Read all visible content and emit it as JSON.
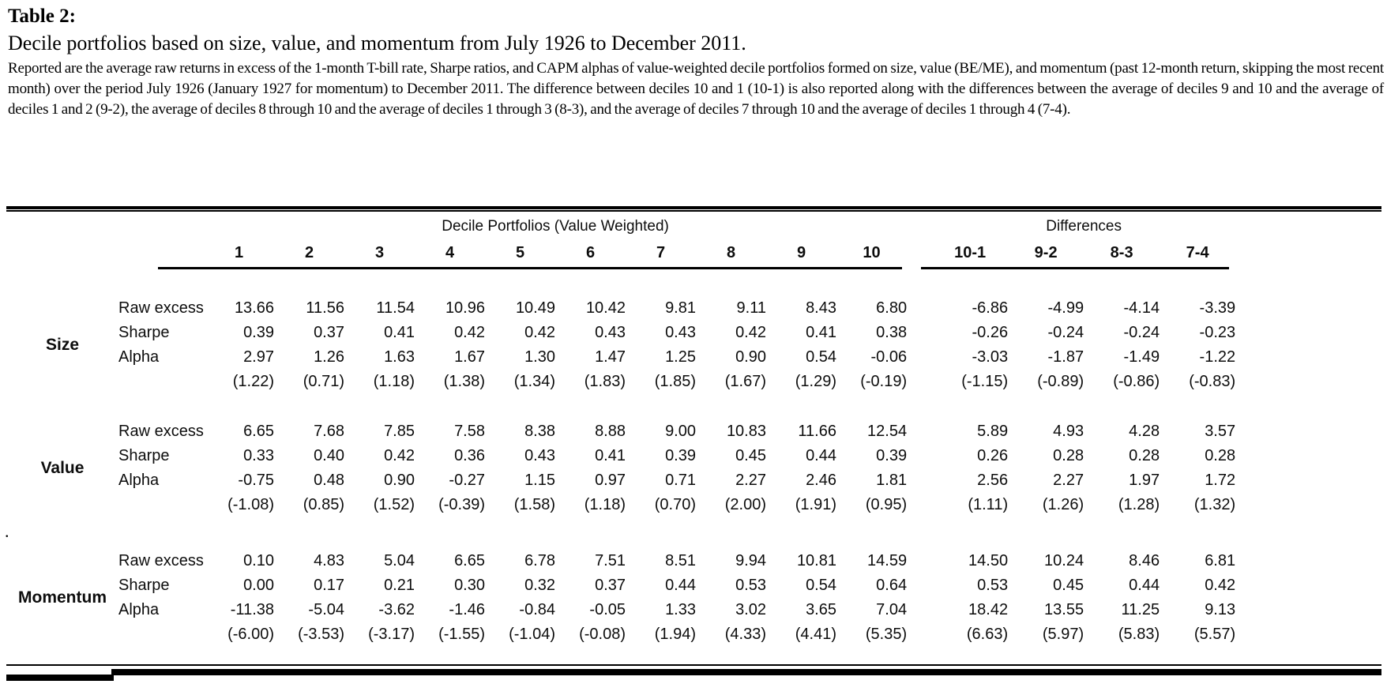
{
  "page": {
    "title": "Table 2:",
    "subtitle": "Decile portfolios based on size, value, and momentum from July 1926 to December 2011.",
    "description": "Reported are the average raw returns in excess of the 1-month T-bill rate, Sharpe ratios, and CAPM alphas of value-weighted decile portfolios formed on size, value (BE/ME), and momentum (past 12-month return, skipping the most recent month) over the period July 1926 (January 1927 for momentum) to December 2011. The difference between deciles 10 and 1 (10-1) is also reported along with the differences between the average of deciles 9 and 10 and the average of deciles 1 and 2 (9-2), the average of deciles 8 through 10 and the average of deciles 1 through 3 (8-3), and the average of deciles 7 through 10 and the average of deciles 1 through 4 (7-4).",
    "stray_mark": "."
  },
  "chart_data": {
    "type": "table",
    "title": "Decile portfolios based on size, value, and momentum from July 1926 to December 2011",
    "group_headers": {
      "deciles": "Decile Portfolios (Value Weighted)",
      "differences": "Differences"
    },
    "decile_columns": [
      "1",
      "2",
      "3",
      "4",
      "5",
      "6",
      "7",
      "8",
      "9",
      "10"
    ],
    "difference_columns": [
      "10-1",
      "9-2",
      "8-3",
      "7-4"
    ],
    "row_groups": [
      {
        "label": "Size",
        "rows": [
          {
            "stat": "Raw excess",
            "tstat": false,
            "deciles": [
              "13.66",
              "11.56",
              "11.54",
              "10.96",
              "10.49",
              "10.42",
              "9.81",
              "9.11",
              "8.43",
              "6.80"
            ],
            "differences": [
              "-6.86",
              "-4.99",
              "-4.14",
              "-3.39"
            ]
          },
          {
            "stat": "Sharpe",
            "tstat": false,
            "deciles": [
              "0.39",
              "0.37",
              "0.41",
              "0.42",
              "0.42",
              "0.43",
              "0.43",
              "0.42",
              "0.41",
              "0.38"
            ],
            "differences": [
              "-0.26",
              "-0.24",
              "-0.24",
              "-0.23"
            ]
          },
          {
            "stat": "Alpha",
            "tstat": false,
            "deciles": [
              "2.97",
              "1.26",
              "1.63",
              "1.67",
              "1.30",
              "1.47",
              "1.25",
              "0.90",
              "0.54",
              "-0.06"
            ],
            "differences": [
              "-3.03",
              "-1.87",
              "-1.49",
              "-1.22"
            ]
          },
          {
            "stat": "",
            "tstat": true,
            "deciles": [
              "(1.22)",
              "(0.71)",
              "(1.18)",
              "(1.38)",
              "(1.34)",
              "(1.83)",
              "(1.85)",
              "(1.67)",
              "(1.29)",
              "(-0.19)"
            ],
            "differences": [
              "(-1.15)",
              "(-0.89)",
              "(-0.86)",
              "(-0.83)"
            ]
          }
        ]
      },
      {
        "label": "Value",
        "rows": [
          {
            "stat": "Raw excess",
            "tstat": false,
            "deciles": [
              "6.65",
              "7.68",
              "7.85",
              "7.58",
              "8.38",
              "8.88",
              "9.00",
              "10.83",
              "11.66",
              "12.54"
            ],
            "differences": [
              "5.89",
              "4.93",
              "4.28",
              "3.57"
            ]
          },
          {
            "stat": "Sharpe",
            "tstat": false,
            "deciles": [
              "0.33",
              "0.40",
              "0.42",
              "0.36",
              "0.43",
              "0.41",
              "0.39",
              "0.45",
              "0.44",
              "0.39"
            ],
            "differences": [
              "0.26",
              "0.28",
              "0.28",
              "0.28"
            ]
          },
          {
            "stat": "Alpha",
            "tstat": false,
            "deciles": [
              "-0.75",
              "0.48",
              "0.90",
              "-0.27",
              "1.15",
              "0.97",
              "0.71",
              "2.27",
              "2.46",
              "1.81"
            ],
            "differences": [
              "2.56",
              "2.27",
              "1.97",
              "1.72"
            ]
          },
          {
            "stat": "",
            "tstat": true,
            "deciles": [
              "(-1.08)",
              "(0.85)",
              "(1.52)",
              "(-0.39)",
              "(1.58)",
              "(1.18)",
              "(0.70)",
              "(2.00)",
              "(1.91)",
              "(0.95)"
            ],
            "differences": [
              "(1.11)",
              "(1.26)",
              "(1.28)",
              "(1.32)"
            ]
          }
        ]
      },
      {
        "label": "Momentum",
        "rows": [
          {
            "stat": "Raw excess",
            "tstat": false,
            "deciles": [
              "0.10",
              "4.83",
              "5.04",
              "6.65",
              "6.78",
              "7.51",
              "8.51",
              "9.94",
              "10.81",
              "14.59"
            ],
            "differences": [
              "14.50",
              "10.24",
              "8.46",
              "6.81"
            ]
          },
          {
            "stat": "Sharpe",
            "tstat": false,
            "deciles": [
              "0.00",
              "0.17",
              "0.21",
              "0.30",
              "0.32",
              "0.37",
              "0.44",
              "0.53",
              "0.54",
              "0.64"
            ],
            "differences": [
              "0.53",
              "0.45",
              "0.44",
              "0.42"
            ]
          },
          {
            "stat": "Alpha",
            "tstat": false,
            "deciles": [
              "-11.38",
              "-5.04",
              "-3.62",
              "-1.46",
              "-0.84",
              "-0.05",
              "1.33",
              "3.02",
              "3.65",
              "7.04"
            ],
            "differences": [
              "18.42",
              "13.55",
              "11.25",
              "9.13"
            ]
          },
          {
            "stat": "",
            "tstat": true,
            "deciles": [
              "(-6.00)",
              "(-3.53)",
              "(-3.17)",
              "(-1.55)",
              "(-1.04)",
              "(-0.08)",
              "(1.94)",
              "(4.33)",
              "(4.41)",
              "(5.35)"
            ],
            "differences": [
              "(6.63)",
              "(5.97)",
              "(5.83)",
              "(5.57)"
            ]
          }
        ]
      }
    ]
  }
}
